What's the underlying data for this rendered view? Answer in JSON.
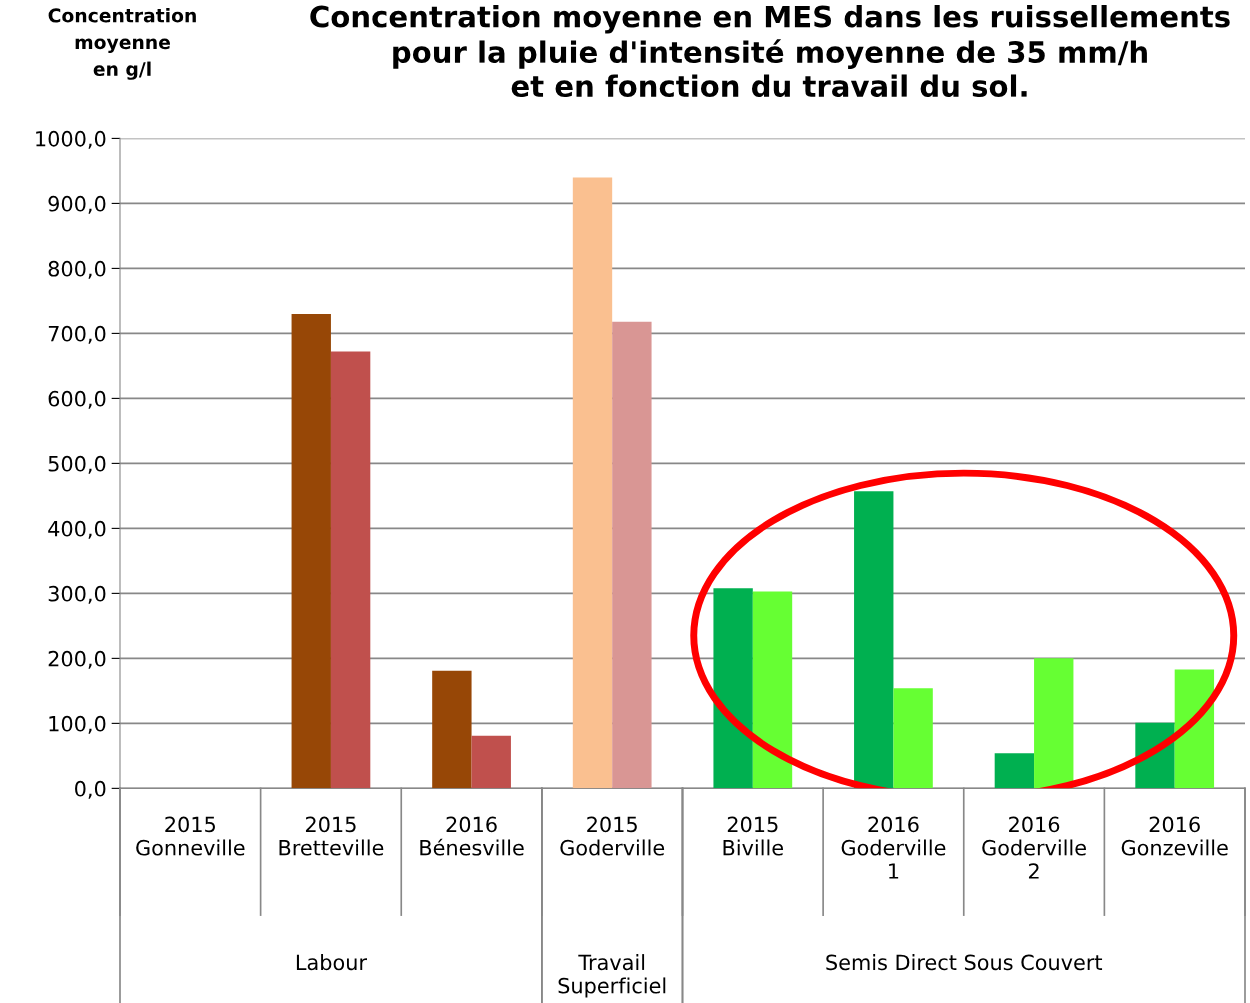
{
  "chart_data": {
    "type": "bar",
    "title": "Concentration moyenne en MES dans les ruissellements\npour la pluie d'intensité moyenne de 35 mm/h\net en fonction du travail du sol.",
    "ylabel": "Concentration\nmoyenne\nen g/l",
    "categories": [
      "2015\nGonneville",
      "2015\nBretteville",
      "2016\nBénesville",
      "2015\nGoderville",
      "2015\nBiville",
      "2016\nGoderville\n1",
      "2016\nGoderville\n2",
      "2016\nGonzeville"
    ],
    "series": [
      {
        "values": [
          null,
          730,
          181,
          940,
          308,
          457,
          54,
          101
        ],
        "colors": [
          "#974706",
          "#974706",
          "#974706",
          "#fac090",
          "#00b050",
          "#00b050",
          "#00b050",
          "#00b050"
        ]
      },
      {
        "values": [
          null,
          672,
          81,
          718,
          303,
          154,
          200,
          183
        ],
        "colors": [
          "#c0504d",
          "#c0504d",
          "#c0504d",
          "#d99694",
          "#66ff33",
          "#66ff33",
          "#66ff33",
          "#66ff33"
        ]
      }
    ],
    "annotations": [
      "Labour",
      "Travail\nSuperficiel",
      "Semis Direct Sous Couvert"
    ],
    "ylim": [
      0,
      1000
    ],
    "yticks": [
      {
        "value": 0,
        "label": "0,0"
      },
      {
        "value": 100,
        "label": "100,0"
      },
      {
        "value": 200,
        "label": "200,0"
      },
      {
        "value": 300,
        "label": "300,0"
      },
      {
        "value": 400,
        "label": "400,0"
      },
      {
        "value": 500,
        "label": "500,0"
      },
      {
        "value": 600,
        "label": "600,0"
      },
      {
        "value": 700,
        "label": "700,0"
      },
      {
        "value": 800,
        "label": "800,0"
      },
      {
        "value": 900,
        "label": "900,0"
      },
      {
        "value": 1000,
        "label": "1000,0"
      }
    ],
    "grid": "y",
    "legend": false
  }
}
